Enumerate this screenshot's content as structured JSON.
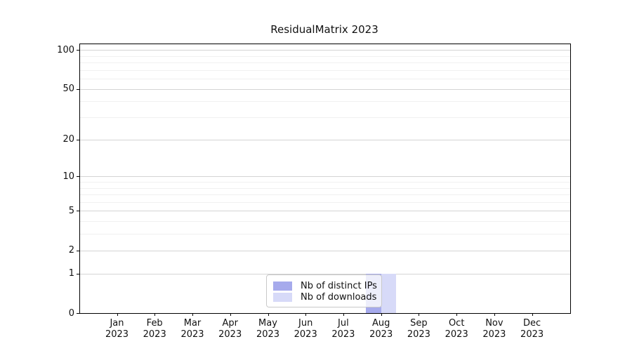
{
  "window": {
    "title": "ResidualMatrix 2023"
  },
  "chart_data": {
    "type": "bar",
    "title": "ResidualMatrix 2023",
    "categories": [
      "Jan 2023",
      "Feb 2023",
      "Mar 2023",
      "Apr 2023",
      "May 2023",
      "Jun 2023",
      "Jul 2023",
      "Aug 2023",
      "Sep 2023",
      "Oct 2023",
      "Nov 2023",
      "Dec 2023"
    ],
    "x_tick_months": [
      "Jan",
      "Feb",
      "Mar",
      "Apr",
      "May",
      "Jun",
      "Jul",
      "Aug",
      "Sep",
      "Oct",
      "Nov",
      "Dec"
    ],
    "x_tick_year": "2023",
    "series": [
      {
        "name": "Nb of distinct IPs",
        "color": "#a6aaec",
        "values": [
          0,
          0,
          0,
          0,
          0,
          0,
          0,
          1,
          0,
          0,
          0,
          0
        ]
      },
      {
        "name": "Nb of downloads",
        "color": "#d7daf8",
        "values": [
          0,
          0,
          0,
          0,
          0,
          0,
          0,
          1,
          0,
          0,
          0,
          0
        ]
      }
    ],
    "yaxis": {
      "scale": "log1p",
      "major_ticks": [
        0,
        1,
        2,
        5,
        10,
        20,
        50,
        100
      ],
      "minor_ticks": [
        3,
        4,
        6,
        7,
        8,
        9,
        30,
        40,
        60,
        70,
        80,
        90
      ],
      "ylim": [
        0,
        110
      ]
    },
    "grid": {
      "horizontal": true,
      "vertical": false,
      "major_color": "#d4d4d4",
      "minor_color": "#f0f0f0"
    },
    "legend": {
      "position": "lower center"
    }
  }
}
